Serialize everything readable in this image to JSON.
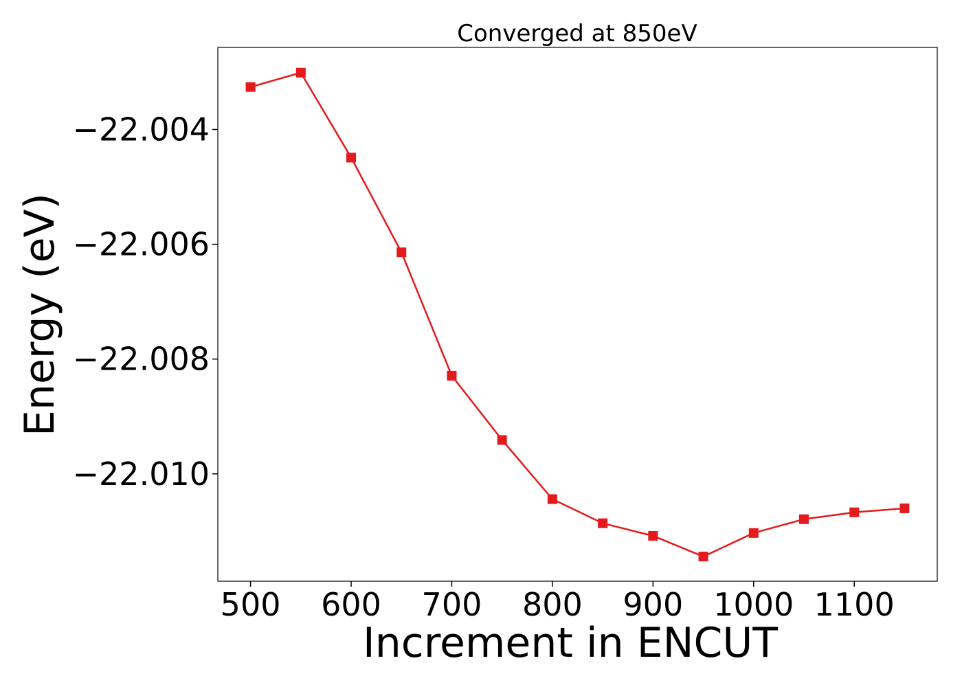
{
  "chart_data": {
    "type": "line",
    "title": "Converged at 850eV",
    "xlabel": "Increment in ENCUT",
    "ylabel": "Energy (eV)",
    "xlim": [
      467.5,
      1182.5
    ],
    "ylim": [
      -22.01187,
      -22.00257
    ],
    "xticks": [
      500,
      600,
      700,
      800,
      900,
      1000,
      1100
    ],
    "xtick_labels": [
      "500",
      "600",
      "700",
      "800",
      "900",
      "1000",
      "1100"
    ],
    "yticks": [
      -22.004,
      -22.006,
      -22.008,
      -22.01
    ],
    "ytick_labels": [
      "−22.004",
      "−22.006",
      "−22.008",
      "−22.010"
    ],
    "grid": false,
    "series": [
      {
        "color": "#e41a1c",
        "marker": "square",
        "x": [
          500,
          550,
          600,
          650,
          700,
          750,
          800,
          850,
          900,
          950,
          1000,
          1050,
          1100,
          1150
        ],
        "y": [
          -22.00326,
          -22.00301,
          -22.00449,
          -22.00614,
          -22.00829,
          -22.00941,
          -22.01044,
          -22.01086,
          -22.01108,
          -22.01144,
          -22.01103,
          -22.01079,
          -22.01067,
          -22.0106
        ]
      }
    ]
  }
}
